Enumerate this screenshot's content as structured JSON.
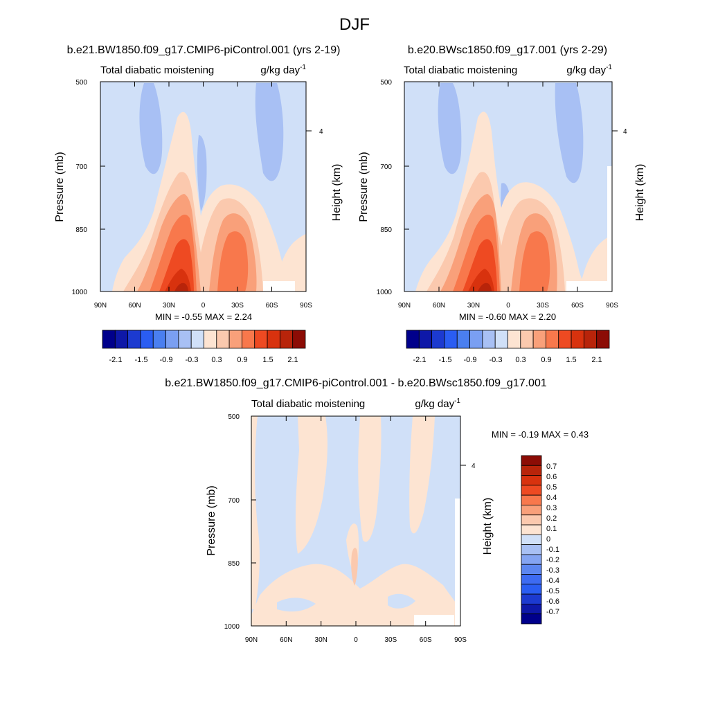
{
  "figure_title": "DJF",
  "chart_data": [
    {
      "type": "contour",
      "title": "b.e21.BW1850.f09_g17.CMIP6-piControl.001 (yrs 2-19)",
      "left_string": "Total diabatic moistening",
      "right_string": "g/kg day",
      "units_exponent": "-1",
      "xlabel": "",
      "ylabel": "Pressure (mb)",
      "ylabel_right": "Height (km)",
      "x_ticks": [
        "90N",
        "60N",
        "30N",
        "0",
        "30S",
        "60S",
        "90S"
      ],
      "xlim": [
        90,
        -90
      ],
      "y_ticks": [
        "500",
        "700",
        "850",
        "1000"
      ],
      "ylim_mb": [
        1000,
        500
      ],
      "height_ticks": [
        "4"
      ],
      "stats": "MIN =  -0.55  MAX =   2.24",
      "min": -0.55,
      "max": 2.24,
      "colorbar_labels": [
        "-2.1",
        "-1.5",
        "-0.9",
        "-0.3",
        "0.3",
        "0.9",
        "1.5",
        "2.1"
      ],
      "colorbar_orientation": "horizontal"
    },
    {
      "type": "contour",
      "title": "b.e20.BWsc1850.f09_g17.001 (yrs 2-29)",
      "left_string": "Total diabatic moistening",
      "right_string": "g/kg day",
      "units_exponent": "-1",
      "xlabel": "",
      "ylabel": "Pressure (mb)",
      "ylabel_right": "Height (km)",
      "x_ticks": [
        "90N",
        "60N",
        "30N",
        "0",
        "30S",
        "60S",
        "90S"
      ],
      "xlim": [
        90,
        -90
      ],
      "y_ticks": [
        "500",
        "700",
        "850",
        "1000"
      ],
      "ylim_mb": [
        1000,
        500
      ],
      "height_ticks": [
        "4"
      ],
      "stats": "MIN =  -0.60  MAX =   2.20",
      "min": -0.6,
      "max": 2.2,
      "colorbar_labels": [
        "-2.1",
        "-1.5",
        "-0.9",
        "-0.3",
        "0.3",
        "0.9",
        "1.5",
        "2.1"
      ],
      "colorbar_orientation": "horizontal"
    },
    {
      "type": "contour",
      "title": "b.e21.BW1850.f09_g17.CMIP6-piControl.001 - b.e20.BWsc1850.f09_g17.001",
      "left_string": "Total diabatic moistening",
      "right_string": "g/kg day",
      "units_exponent": "-1",
      "xlabel": "",
      "ylabel": "Pressure (mb)",
      "ylabel_right": "Height (km)",
      "x_ticks": [
        "90N",
        "60N",
        "30N",
        "0",
        "30S",
        "60S",
        "90S"
      ],
      "xlim": [
        90,
        -90
      ],
      "y_ticks": [
        "500",
        "700",
        "850",
        "1000"
      ],
      "ylim_mb": [
        1000,
        500
      ],
      "height_ticks": [
        "4"
      ],
      "stats": "MIN =  -0.19  MAX =   0.43",
      "min": -0.19,
      "max": 0.43,
      "colorbar_labels": [
        "0.7",
        "0.6",
        "0.5",
        "0.4",
        "0.3",
        "0.2",
        "0.1",
        "0",
        "-0.1",
        "-0.2",
        "-0.3",
        "-0.4",
        "-0.5",
        "-0.6",
        "-0.7"
      ],
      "colorbar_orientation": "vertical"
    }
  ],
  "colors": {
    "main_scale": [
      "#00008b",
      "#0e18a8",
      "#1c3ad0",
      "#2a5df2",
      "#4a7ff0",
      "#7a9ff2",
      "#a8c0f4",
      "#d0e0f8",
      "#fde4d2",
      "#fbc9ae",
      "#f9a07a",
      "#f8784c",
      "#ee4a22",
      "#d8320e",
      "#b8240a",
      "#8c0c05"
    ],
    "diff_scale": [
      "#00008b",
      "#0e18a8",
      "#1c3ad0",
      "#2a5df2",
      "#3d6bf2",
      "#5c86f0",
      "#84a4f2",
      "#a8c0f4",
      "#d0e0f8",
      "#fde4d2",
      "#fbc9ae",
      "#f9a07a",
      "#f8784c",
      "#ee4a22",
      "#d8320e",
      "#b8240a",
      "#8c0c05"
    ]
  }
}
